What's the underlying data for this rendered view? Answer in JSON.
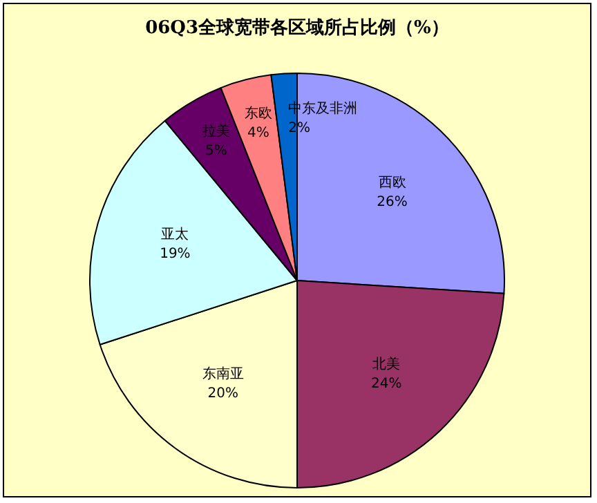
{
  "chart_data": {
    "type": "pie",
    "title": "06Q3全球宽带各区域所占比例（%）",
    "categories": [
      "西欧",
      "北美",
      "东南亚",
      "亚太",
      "拉美",
      "东欧",
      "中东及非洲"
    ],
    "values": [
      26,
      24,
      20,
      19,
      5,
      4,
      2
    ],
    "value_labels": [
      "26%",
      "24%",
      "20%",
      "19%",
      "5%",
      "4%",
      "2%"
    ],
    "colors": [
      "#9999ff",
      "#993366",
      "#ffffcc",
      "#ccffff",
      "#660066",
      "#ff8080",
      "#0066cc"
    ],
    "legend": false
  }
}
